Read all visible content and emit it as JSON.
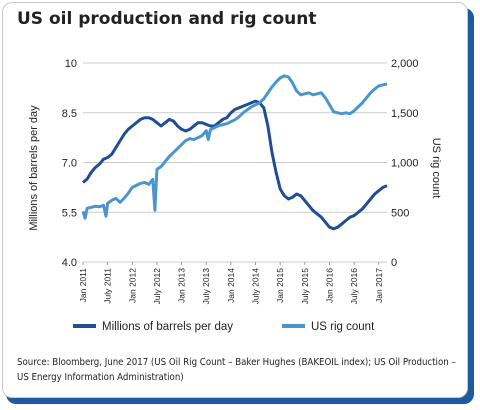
{
  "title": "US oil production and rig count",
  "source_text": "Source: Bloomberg, June 2017 (US Oil Rig Count – Baker Hughes (BAKEOIL index); US Oil Production – US Energy Information Administration)",
  "colors": {
    "production": "#1f4e96",
    "rigs": "#4a95cd",
    "frame_shadow": "#1d5aa0",
    "grid": "#bdbdbd"
  },
  "chart_data": {
    "type": "line",
    "title": "US oil production and rig count",
    "ylabel_left": "Millions of barrels per day",
    "ylabel_right": "US rig count",
    "y_left": {
      "min": 4.0,
      "max": 10.0,
      "ticks": [
        "4.0",
        "5.5",
        "7.0",
        "8.5",
        "10"
      ]
    },
    "y_right": {
      "min": 0,
      "max": 2000,
      "ticks": [
        "0",
        "500",
        "1,000",
        "1,500",
        "2,000"
      ]
    },
    "x_ticks": [
      "Jan 2011",
      "July 2011",
      "Jan 2012",
      "July 2012",
      "Jan 2013",
      "July 2013",
      "Jan 2014",
      "July 2014",
      "Jan 2015",
      "July 2015",
      "Jan 2016",
      "July 2016",
      "Jan 2017"
    ],
    "grid": true,
    "legend_position": "bottom",
    "series": [
      {
        "name": "Millions of barrels per day",
        "axis": "left",
        "points": [
          [
            "2011-01",
            6.4
          ],
          [
            "2011-02",
            6.5
          ],
          [
            "2011-03",
            6.7
          ],
          [
            "2011-04",
            6.85
          ],
          [
            "2011-05",
            6.95
          ],
          [
            "2011-06",
            7.1
          ],
          [
            "2011-07",
            7.15
          ],
          [
            "2011-08",
            7.25
          ],
          [
            "2011-09",
            7.45
          ],
          [
            "2011-10",
            7.65
          ],
          [
            "2011-11",
            7.85
          ],
          [
            "2011-12",
            8.0
          ],
          [
            "2012-01",
            8.1
          ],
          [
            "2012-02",
            8.2
          ],
          [
            "2012-03",
            8.3
          ],
          [
            "2012-04",
            8.35
          ],
          [
            "2012-05",
            8.35
          ],
          [
            "2012-06",
            8.3
          ],
          [
            "2012-07",
            8.2
          ],
          [
            "2012-08",
            8.1
          ],
          [
            "2012-09",
            8.2
          ],
          [
            "2012-10",
            8.3
          ],
          [
            "2012-11",
            8.25
          ],
          [
            "2012-12",
            8.1
          ],
          [
            "2013-01",
            8.0
          ],
          [
            "2013-02",
            7.95
          ],
          [
            "2013-03",
            8.0
          ],
          [
            "2013-04",
            8.1
          ],
          [
            "2013-05",
            8.2
          ],
          [
            "2013-06",
            8.2
          ],
          [
            "2013-07",
            8.15
          ],
          [
            "2013-08",
            8.1
          ],
          [
            "2013-09",
            8.1
          ],
          [
            "2013-10",
            8.2
          ],
          [
            "2013-11",
            8.3
          ],
          [
            "2013-12",
            8.35
          ],
          [
            "2014-01",
            8.5
          ],
          [
            "2014-02",
            8.6
          ],
          [
            "2014-03",
            8.65
          ],
          [
            "2014-04",
            8.7
          ],
          [
            "2014-05",
            8.75
          ],
          [
            "2014-06",
            8.8
          ],
          [
            "2014-07",
            8.85
          ],
          [
            "2014-08",
            8.8
          ],
          [
            "2014-09",
            8.65
          ],
          [
            "2014-10",
            8.1
          ],
          [
            "2014-11",
            7.3
          ],
          [
            "2014-12",
            6.7
          ],
          [
            "2015-01",
            6.2
          ],
          [
            "2015-02",
            6.0
          ],
          [
            "2015-03",
            5.9
          ],
          [
            "2015-04",
            5.95
          ],
          [
            "2015-05",
            6.05
          ],
          [
            "2015-06",
            6.0
          ],
          [
            "2015-07",
            5.85
          ],
          [
            "2015-08",
            5.7
          ],
          [
            "2015-09",
            5.55
          ],
          [
            "2015-10",
            5.45
          ],
          [
            "2015-11",
            5.35
          ],
          [
            "2015-12",
            5.2
          ],
          [
            "2016-01",
            5.05
          ],
          [
            "2016-02",
            5.0
          ],
          [
            "2016-03",
            5.05
          ],
          [
            "2016-04",
            5.15
          ],
          [
            "2016-05",
            5.25
          ],
          [
            "2016-06",
            5.35
          ],
          [
            "2016-07",
            5.4
          ],
          [
            "2016-08",
            5.5
          ],
          [
            "2016-09",
            5.6
          ],
          [
            "2016-10",
            5.75
          ],
          [
            "2016-11",
            5.9
          ],
          [
            "2016-12",
            6.05
          ],
          [
            "2017-01",
            6.15
          ],
          [
            "2017-02",
            6.25
          ],
          [
            "2017-03",
            6.3
          ]
        ]
      },
      {
        "name": "US rig count",
        "axis": "right",
        "points": [
          [
            "2011-01",
            510
          ],
          [
            "2011-01.5",
            440
          ],
          [
            "2011-02",
            540
          ],
          [
            "2011-03",
            550
          ],
          [
            "2011-04",
            560
          ],
          [
            "2011-05",
            555
          ],
          [
            "2011-06",
            570
          ],
          [
            "2011-06.6",
            460
          ],
          [
            "2011-07",
            590
          ],
          [
            "2011-08",
            620
          ],
          [
            "2011-09",
            640
          ],
          [
            "2011-10",
            600
          ],
          [
            "2011-11",
            640
          ],
          [
            "2011-12",
            690
          ],
          [
            "2012-01",
            750
          ],
          [
            "2012-02",
            770
          ],
          [
            "2012-03",
            790
          ],
          [
            "2012-04",
            800
          ],
          [
            "2012-05",
            780
          ],
          [
            "2012-06",
            830
          ],
          [
            "2012-06.5",
            520
          ],
          [
            "2012-07",
            930
          ],
          [
            "2012-08",
            960
          ],
          [
            "2012-09",
            1010
          ],
          [
            "2012-10",
            1060
          ],
          [
            "2012-11",
            1100
          ],
          [
            "2012-12",
            1140
          ],
          [
            "2013-01",
            1180
          ],
          [
            "2013-02",
            1220
          ],
          [
            "2013-03",
            1240
          ],
          [
            "2013-04",
            1230
          ],
          [
            "2013-05",
            1250
          ],
          [
            "2013-06",
            1270
          ],
          [
            "2013-07",
            1320
          ],
          [
            "2013-07.5",
            1230
          ],
          [
            "2013-08",
            1330
          ],
          [
            "2013-09",
            1350
          ],
          [
            "2013-10",
            1370
          ],
          [
            "2013-11",
            1380
          ],
          [
            "2013-12",
            1390
          ],
          [
            "2014-01",
            1410
          ],
          [
            "2014-02",
            1430
          ],
          [
            "2014-03",
            1460
          ],
          [
            "2014-04",
            1500
          ],
          [
            "2014-05",
            1530
          ],
          [
            "2014-06",
            1560
          ],
          [
            "2014-07",
            1580
          ],
          [
            "2014-08",
            1600
          ],
          [
            "2014-09",
            1640
          ],
          [
            "2014-10",
            1700
          ],
          [
            "2014-11",
            1760
          ],
          [
            "2014-12",
            1810
          ],
          [
            "2015-01",
            1850
          ],
          [
            "2015-02",
            1870
          ],
          [
            "2015-03",
            1860
          ],
          [
            "2015-04",
            1800
          ],
          [
            "2015-05",
            1720
          ],
          [
            "2015-06",
            1680
          ],
          [
            "2015-07",
            1690
          ],
          [
            "2015-08",
            1700
          ],
          [
            "2015-09",
            1680
          ],
          [
            "2015-10",
            1690
          ],
          [
            "2015-11",
            1700
          ],
          [
            "2015-12",
            1650
          ],
          [
            "2016-01",
            1580
          ],
          [
            "2016-02",
            1510
          ],
          [
            "2016-03",
            1500
          ],
          [
            "2016-04",
            1490
          ],
          [
            "2016-05",
            1500
          ],
          [
            "2016-06",
            1490
          ],
          [
            "2016-07",
            1520
          ],
          [
            "2016-08",
            1560
          ],
          [
            "2016-09",
            1600
          ],
          [
            "2016-10",
            1650
          ],
          [
            "2016-11",
            1700
          ],
          [
            "2016-12",
            1740
          ],
          [
            "2017-01",
            1770
          ],
          [
            "2017-02",
            1780
          ],
          [
            "2017-03",
            1790
          ]
        ]
      }
    ]
  }
}
